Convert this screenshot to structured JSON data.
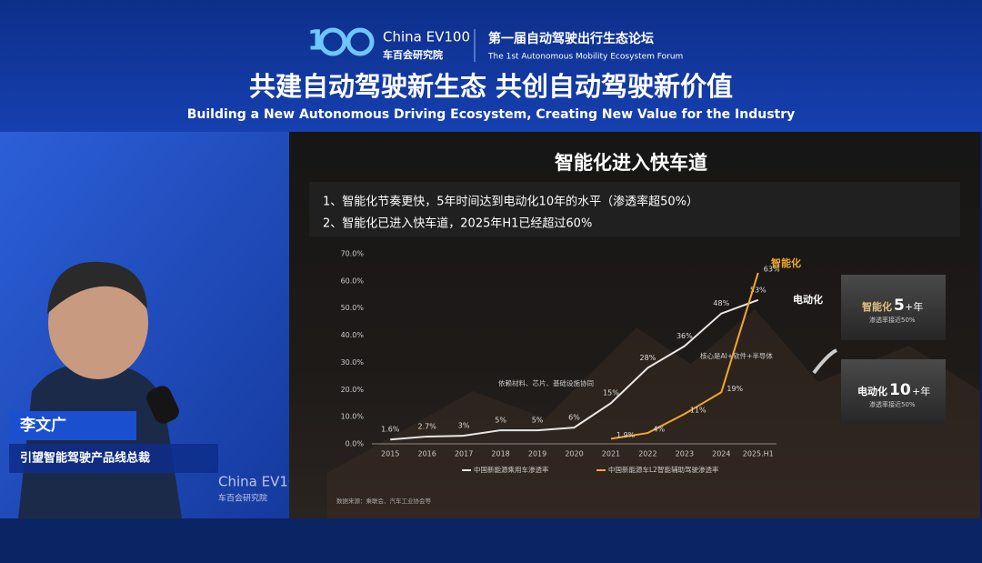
{
  "header": {
    "logo_text": "China EV100",
    "logo_subtext": "车百会研究院",
    "forum_title": "第一届自动驾驶出行生态论坛",
    "forum_subtitle": "The 1st Autonomous Mobility Ecosystem Forum",
    "title": "共建自动驾驶新生态  共创自动驾驶新价值",
    "subtitle": "Building a New Autonomous Driving Ecosystem, Creating New Value for the Industry"
  },
  "speaker": {
    "name": "李文广",
    "role": "引望智能驾驶产品线总裁"
  },
  "slide": {
    "title": "智能化进入快车道",
    "bullets": [
      "1、智能化节奏更快，5年时间达到电动化10年的水平（渗透率超50%）",
      "2、智能化已进入快车道，2025年H1已经超过60%"
    ],
    "callouts": [
      {
        "label": "智能化",
        "number": "5",
        "unit": "+年",
        "note": "渗透率接近50%"
      },
      {
        "label": "电动化",
        "number": "10",
        "unit": "+年",
        "note": "渗透率接近50%"
      }
    ]
  },
  "chart_data": {
    "type": "line",
    "categories": [
      "2015",
      "2016",
      "2017",
      "2018",
      "2019",
      "2020",
      "2021",
      "2022",
      "2023",
      "2024",
      "2025.H1"
    ],
    "series": [
      {
        "name": "中国新能源乘用车渗透率",
        "color": "#e8e8e8",
        "values": [
          1.6,
          2.7,
          3,
          5,
          5,
          6,
          15,
          28,
          36,
          48,
          53
        ],
        "value_labels": [
          "1.6%",
          "2.7%",
          "3%",
          "5%",
          "5%",
          "6%",
          "15%",
          "28%",
          "36%",
          "48%",
          "53%"
        ]
      },
      {
        "name": "中国新能源车L2智能辅助驾驶渗透率",
        "color": "#f0a830",
        "values": [
          null,
          null,
          null,
          null,
          null,
          null,
          1.9,
          4,
          11,
          19,
          63
        ],
        "value_labels": [
          null,
          null,
          null,
          null,
          null,
          null,
          "1.9%",
          "4%",
          "11%",
          "19%",
          "63%"
        ]
      }
    ],
    "ylim": [
      0,
      70
    ],
    "yticks": [
      {
        "value": 0,
        "label": "0.0%"
      },
      {
        "value": 10,
        "label": "10.0%"
      },
      {
        "value": 20,
        "label": "20.0%"
      },
      {
        "value": 30,
        "label": "30.0%"
      },
      {
        "value": 40,
        "label": "40.0%"
      },
      {
        "value": 50,
        "label": "50.0%"
      },
      {
        "value": 60,
        "label": "60.0%"
      },
      {
        "value": 70,
        "label": "70.0%"
      }
    ],
    "annotations": [
      "智能化",
      "电动化",
      "依赖材料、芯片、基础设施协同",
      "核心是AI+软件+半导体"
    ],
    "source": "数据来源：乘联会、汽车工业协会等"
  }
}
